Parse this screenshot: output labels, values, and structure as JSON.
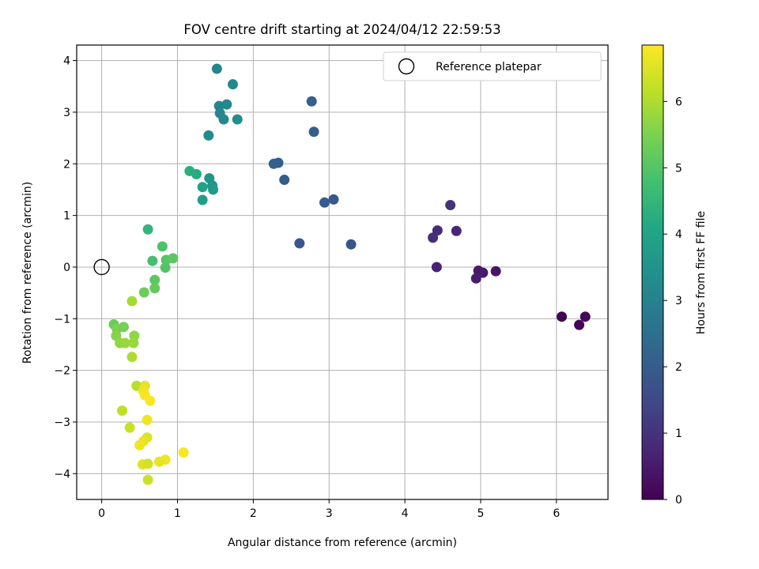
{
  "chart_data": {
    "type": "scatter",
    "title": "FOV centre drift starting at 2024/04/12 22:59:53",
    "xlabel": "Angular distance from reference (arcmin)",
    "ylabel": "Rotation from reference (arcmin)",
    "xlim": [
      -0.33,
      6.68
    ],
    "ylim": [
      -4.5,
      4.3
    ],
    "xticks": [
      0,
      1,
      2,
      3,
      4,
      5,
      6
    ],
    "yticks": [
      -4,
      -3,
      -2,
      -1,
      0,
      1,
      2,
      3,
      4
    ],
    "grid": true,
    "legend": {
      "position": "top-right",
      "entries": [
        "Reference platepar"
      ]
    },
    "reference_point": {
      "x": 0,
      "y": 0,
      "label": "Reference platepar"
    },
    "colorbar": {
      "label": "Hours from first FF file",
      "range": [
        0,
        6.85
      ],
      "ticks": [
        0,
        1,
        2,
        3,
        4,
        5,
        6
      ],
      "colormap": "viridis"
    },
    "points": [
      {
        "x": 6.07,
        "y": -0.96,
        "c": 0.0
      },
      {
        "x": 6.3,
        "y": -1.12,
        "c": 0.05
      },
      {
        "x": 6.38,
        "y": -0.96,
        "c": 0.12
      },
      {
        "x": 5.2,
        "y": -0.08,
        "c": 0.4
      },
      {
        "x": 5.03,
        "y": -0.11,
        "c": 0.45
      },
      {
        "x": 4.97,
        "y": -0.07,
        "c": 0.5
      },
      {
        "x": 4.94,
        "y": -0.22,
        "c": 0.55
      },
      {
        "x": 4.42,
        "y": 0.0,
        "c": 0.65
      },
      {
        "x": 4.68,
        "y": 0.7,
        "c": 0.75
      },
      {
        "x": 4.43,
        "y": 0.71,
        "c": 0.85
      },
      {
        "x": 4.37,
        "y": 0.57,
        "c": 0.9
      },
      {
        "x": 4.6,
        "y": 1.2,
        "c": 1.0
      },
      {
        "x": 3.29,
        "y": 0.44,
        "c": 1.8
      },
      {
        "x": 2.61,
        "y": 0.46,
        "c": 1.85
      },
      {
        "x": 3.06,
        "y": 1.31,
        "c": 1.9
      },
      {
        "x": 2.94,
        "y": 1.25,
        "c": 1.95
      },
      {
        "x": 2.41,
        "y": 1.69,
        "c": 2.0
      },
      {
        "x": 2.33,
        "y": 2.02,
        "c": 2.05
      },
      {
        "x": 2.27,
        "y": 2.0,
        "c": 2.1
      },
      {
        "x": 2.8,
        "y": 2.62,
        "c": 2.0
      },
      {
        "x": 2.77,
        "y": 3.21,
        "c": 2.05
      },
      {
        "x": 1.52,
        "y": 3.84,
        "c": 3.1
      },
      {
        "x": 1.73,
        "y": 3.54,
        "c": 3.2
      },
      {
        "x": 1.55,
        "y": 3.12,
        "c": 3.1
      },
      {
        "x": 1.65,
        "y": 3.15,
        "c": 3.2
      },
      {
        "x": 1.56,
        "y": 2.98,
        "c": 3.15
      },
      {
        "x": 1.61,
        "y": 2.86,
        "c": 3.2
      },
      {
        "x": 1.79,
        "y": 2.86,
        "c": 3.3
      },
      {
        "x": 1.41,
        "y": 2.55,
        "c": 3.25
      },
      {
        "x": 1.42,
        "y": 1.72,
        "c": 3.5
      },
      {
        "x": 1.46,
        "y": 1.58,
        "c": 3.6
      },
      {
        "x": 1.47,
        "y": 1.5,
        "c": 3.7
      },
      {
        "x": 1.33,
        "y": 1.3,
        "c": 3.8
      },
      {
        "x": 1.33,
        "y": 1.55,
        "c": 3.9
      },
      {
        "x": 1.25,
        "y": 1.8,
        "c": 4.2
      },
      {
        "x": 1.16,
        "y": 1.86,
        "c": 4.3
      },
      {
        "x": 0.61,
        "y": 0.73,
        "c": 4.5
      },
      {
        "x": 0.8,
        "y": 0.4,
        "c": 4.9
      },
      {
        "x": 0.67,
        "y": 0.12,
        "c": 4.8
      },
      {
        "x": 0.85,
        "y": 0.14,
        "c": 5.0
      },
      {
        "x": 0.94,
        "y": 0.17,
        "c": 5.1
      },
      {
        "x": 0.84,
        "y": -0.01,
        "c": 5.0
      },
      {
        "x": 0.7,
        "y": -0.25,
        "c": 5.1
      },
      {
        "x": 0.7,
        "y": -0.41,
        "c": 5.2
      },
      {
        "x": 0.56,
        "y": -0.49,
        "c": 5.3
      },
      {
        "x": 0.4,
        "y": -0.66,
        "c": 5.9
      },
      {
        "x": 0.16,
        "y": -1.11,
        "c": 5.3
      },
      {
        "x": 0.2,
        "y": -1.2,
        "c": 5.5
      },
      {
        "x": 0.29,
        "y": -1.16,
        "c": 5.4
      },
      {
        "x": 0.19,
        "y": -1.33,
        "c": 5.6
      },
      {
        "x": 0.24,
        "y": -1.47,
        "c": 5.7
      },
      {
        "x": 0.31,
        "y": -1.47,
        "c": 5.8
      },
      {
        "x": 0.43,
        "y": -1.33,
        "c": 5.7
      },
      {
        "x": 0.42,
        "y": -1.47,
        "c": 5.8
      },
      {
        "x": 0.4,
        "y": -1.74,
        "c": 6.0
      },
      {
        "x": 0.46,
        "y": -2.3,
        "c": 6.1
      },
      {
        "x": 0.57,
        "y": -2.3,
        "c": 6.6
      },
      {
        "x": 0.55,
        "y": -2.4,
        "c": 6.7
      },
      {
        "x": 0.57,
        "y": -2.48,
        "c": 6.75
      },
      {
        "x": 0.64,
        "y": -2.59,
        "c": 6.8
      },
      {
        "x": 0.27,
        "y": -2.78,
        "c": 6.2
      },
      {
        "x": 0.6,
        "y": -2.96,
        "c": 6.7
      },
      {
        "x": 0.37,
        "y": -3.11,
        "c": 6.3
      },
      {
        "x": 0.6,
        "y": -3.3,
        "c": 6.5
      },
      {
        "x": 0.55,
        "y": -3.37,
        "c": 6.6
      },
      {
        "x": 0.5,
        "y": -3.45,
        "c": 6.7
      },
      {
        "x": 1.08,
        "y": -3.59,
        "c": 6.8
      },
      {
        "x": 0.84,
        "y": -3.73,
        "c": 6.7
      },
      {
        "x": 0.76,
        "y": -3.77,
        "c": 6.6
      },
      {
        "x": 0.54,
        "y": -3.82,
        "c": 6.5
      },
      {
        "x": 0.61,
        "y": -3.81,
        "c": 6.4
      },
      {
        "x": 0.61,
        "y": -4.12,
        "c": 6.3
      }
    ]
  }
}
